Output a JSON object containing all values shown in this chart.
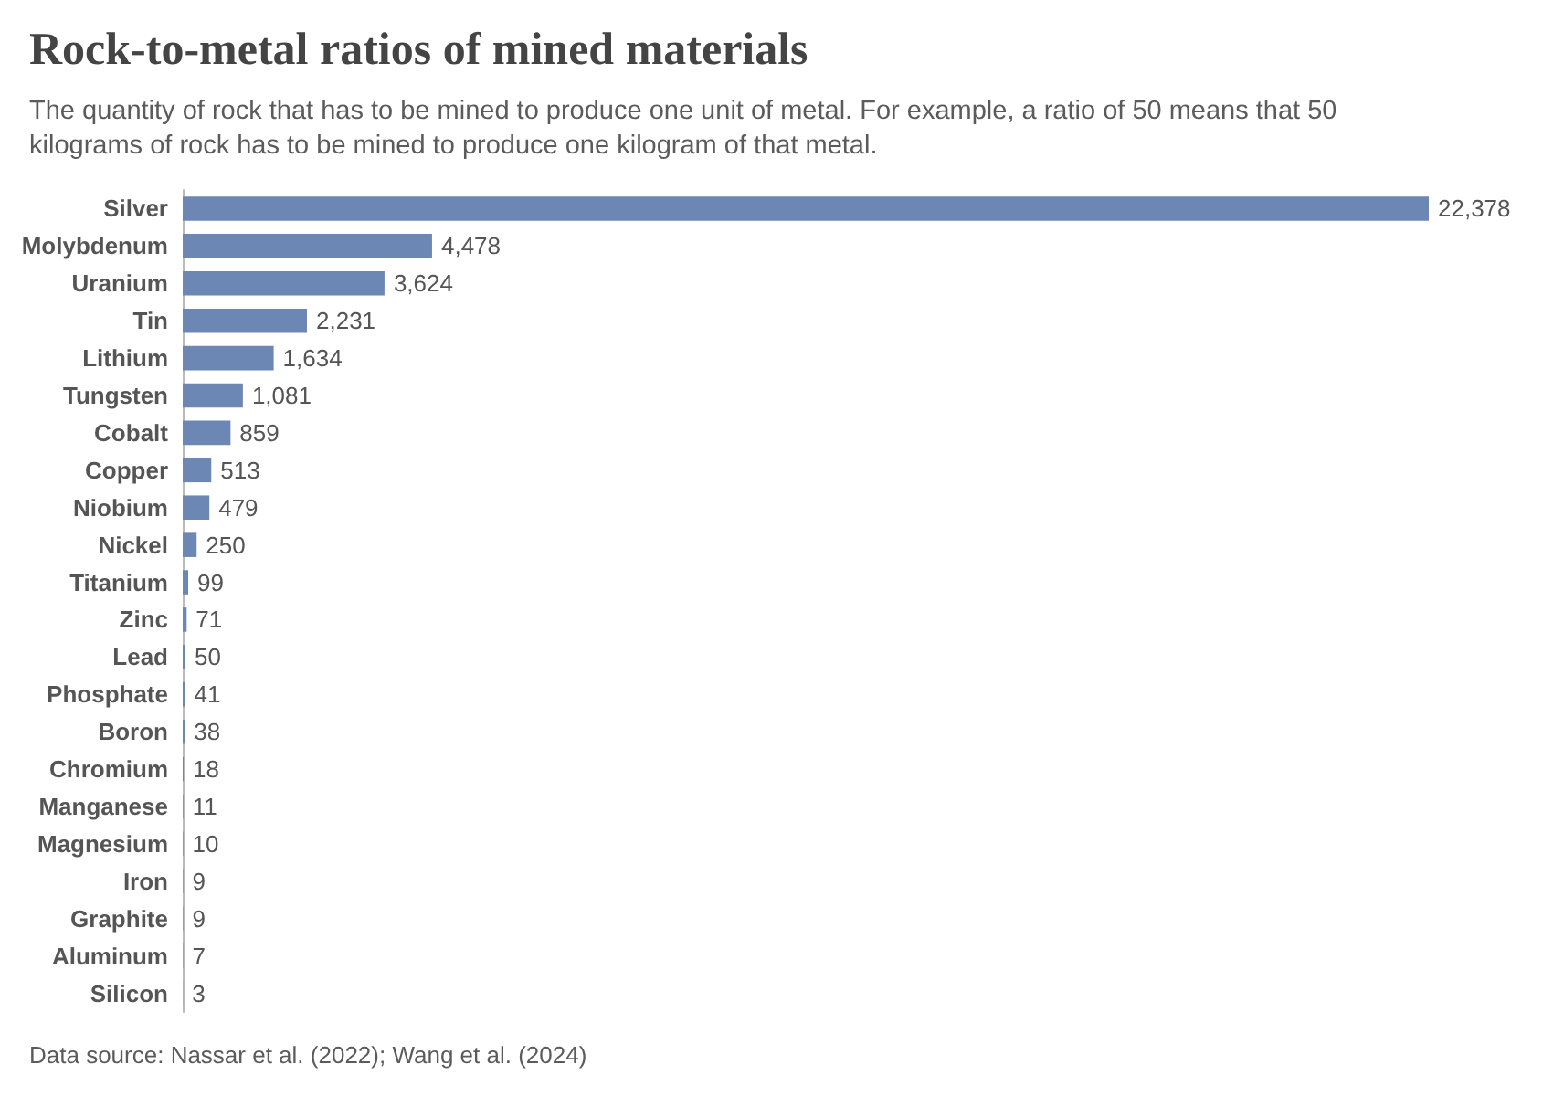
{
  "chart_data": {
    "type": "bar",
    "orientation": "horizontal",
    "title": "Rock-to-metal ratios of mined materials",
    "subtitle": "The quantity of rock that has to be mined to produce one unit of metal. For example, a ratio of 50 means that 50 kilograms of rock has to be mined to produce one kilogram of that metal.",
    "categories": [
      "Silver",
      "Molybdenum",
      "Uranium",
      "Tin",
      "Lithium",
      "Tungsten",
      "Cobalt",
      "Copper",
      "Niobium",
      "Nickel",
      "Titanium",
      "Zinc",
      "Lead",
      "Phosphate",
      "Boron",
      "Chromium",
      "Manganese",
      "Magnesium",
      "Iron",
      "Graphite",
      "Aluminum",
      "Silicon"
    ],
    "values": [
      22378,
      4478,
      3624,
      2231,
      1634,
      1081,
      859,
      513,
      479,
      250,
      99,
      71,
      50,
      41,
      38,
      18,
      11,
      10,
      9,
      9,
      7,
      3
    ],
    "value_labels": [
      "22,378",
      "4,478",
      "3,624",
      "2,231",
      "1,634",
      "1,081",
      "859",
      "513",
      "479",
      "250",
      "99",
      "71",
      "50",
      "41",
      "38",
      "18",
      "11",
      "10",
      "9",
      "9",
      "7",
      "3"
    ],
    "color": "#6d87b4",
    "annotations": [
      "Data source: Nassar et al. (2022); Wang et al. (2024)"
    ]
  }
}
